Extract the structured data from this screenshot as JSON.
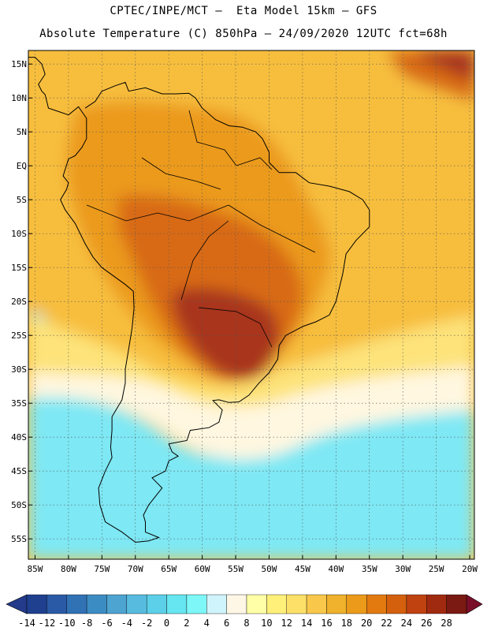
{
  "header": {
    "line1": "CPTEC/INPE/MCT –  Eta Model 15km – GFS",
    "line2": "Absolute Temperature (C) 850hPa – 24/09/2020 12UTC fct=68h"
  },
  "map": {
    "lon_range": [
      -86,
      -19.3
    ],
    "lat_range": [
      -58,
      17
    ],
    "y_ticks": [
      {
        "lat": 15,
        "label": "15N"
      },
      {
        "lat": 10,
        "label": "10N"
      },
      {
        "lat": 5,
        "label": "5N"
      },
      {
        "lat": 0,
        "label": "EQ"
      },
      {
        "lat": -5,
        "label": "5S"
      },
      {
        "lat": -10,
        "label": "10S"
      },
      {
        "lat": -15,
        "label": "15S"
      },
      {
        "lat": -20,
        "label": "20S"
      },
      {
        "lat": -25,
        "label": "25S"
      },
      {
        "lat": -30,
        "label": "30S"
      },
      {
        "lat": -35,
        "label": "35S"
      },
      {
        "lat": -40,
        "label": "40S"
      },
      {
        "lat": -45,
        "label": "45S"
      },
      {
        "lat": -50,
        "label": "50S"
      },
      {
        "lat": -55,
        "label": "55S"
      }
    ],
    "x_ticks": [
      {
        "lon": -85,
        "label": "85W"
      },
      {
        "lon": -80,
        "label": "80W"
      },
      {
        "lon": -75,
        "label": "75W"
      },
      {
        "lon": -70,
        "label": "70W"
      },
      {
        "lon": -65,
        "label": "65W"
      },
      {
        "lon": -60,
        "label": "60W"
      },
      {
        "lon": -55,
        "label": "55W"
      },
      {
        "lon": -50,
        "label": "50W"
      },
      {
        "lon": -45,
        "label": "45W"
      },
      {
        "lon": -40,
        "label": "40W"
      },
      {
        "lon": -35,
        "label": "35W"
      },
      {
        "lon": -30,
        "label": "30W"
      },
      {
        "lon": -25,
        "label": "25W"
      },
      {
        "lon": -20,
        "label": "20W"
      }
    ],
    "coastline": [
      [
        -77.5,
        8.5
      ],
      [
        -76,
        9.5
      ],
      [
        -75,
        11
      ],
      [
        -73,
        11.8
      ],
      [
        -71.5,
        12.3
      ],
      [
        -71,
        11
      ],
      [
        -68.5,
        11.5
      ],
      [
        -66,
        10.6
      ],
      [
        -64,
        10.6
      ],
      [
        -62,
        10.7
      ],
      [
        -61,
        10
      ],
      [
        -60,
        8.5
      ],
      [
        -58,
        6.8
      ],
      [
        -56,
        5.9
      ],
      [
        -54,
        5.7
      ],
      [
        -52,
        5
      ],
      [
        -51,
        4
      ],
      [
        -50,
        2
      ],
      [
        -50,
        0.5
      ],
      [
        -48.5,
        -1
      ],
      [
        -46,
        -1
      ],
      [
        -44,
        -2.5
      ],
      [
        -41,
        -3
      ],
      [
        -38,
        -3.8
      ],
      [
        -36,
        -5
      ],
      [
        -35,
        -6.5
      ],
      [
        -35,
        -9
      ],
      [
        -37,
        -11
      ],
      [
        -38.5,
        -13
      ],
      [
        -39,
        -16
      ],
      [
        -39.5,
        -18
      ],
      [
        -40,
        -20
      ],
      [
        -41,
        -22
      ],
      [
        -43,
        -23
      ],
      [
        -45,
        -23.7
      ],
      [
        -47.5,
        -25
      ],
      [
        -48.5,
        -26.5
      ],
      [
        -48.7,
        -28.5
      ],
      [
        -50,
        -30.5
      ],
      [
        -51.5,
        -32
      ],
      [
        -53,
        -33.8
      ],
      [
        -54.5,
        -34.8
      ],
      [
        -56,
        -34.9
      ],
      [
        -57.5,
        -34.5
      ],
      [
        -58.4,
        -34.6
      ],
      [
        -57,
        -36
      ],
      [
        -57.5,
        -37.8
      ],
      [
        -59,
        -38.6
      ],
      [
        -61.8,
        -39
      ],
      [
        -62.3,
        -40.5
      ],
      [
        -65,
        -41
      ],
      [
        -64.5,
        -42.2
      ],
      [
        -63.6,
        -42.8
      ],
      [
        -65,
        -43.5
      ],
      [
        -65.5,
        -45
      ],
      [
        -67.5,
        -46
      ],
      [
        -66,
        -47.5
      ],
      [
        -68,
        -50
      ],
      [
        -68.8,
        -51.5
      ],
      [
        -68.5,
        -52.5
      ],
      [
        -68.5,
        -54
      ],
      [
        -66.5,
        -54.8
      ],
      [
        -68,
        -55.3
      ],
      [
        -70,
        -55.5
      ],
      [
        -72,
        -54
      ],
      [
        -74.5,
        -52.5
      ],
      [
        -75.3,
        -50
      ],
      [
        -75.5,
        -47.5
      ],
      [
        -74.5,
        -45
      ],
      [
        -73.5,
        -43
      ],
      [
        -73.7,
        -41.5
      ],
      [
        -73.5,
        -39
      ],
      [
        -73.5,
        -37
      ],
      [
        -72,
        -34.5
      ],
      [
        -71.5,
        -32
      ],
      [
        -71.5,
        -30
      ],
      [
        -71,
        -27
      ],
      [
        -70.5,
        -24
      ],
      [
        -70.2,
        -21
      ],
      [
        -70.3,
        -18.5
      ],
      [
        -71.5,
        -17.5
      ],
      [
        -75,
        -15
      ],
      [
        -76.3,
        -13.5
      ],
      [
        -77.5,
        -11.5
      ],
      [
        -79,
        -8.5
      ],
      [
        -80.5,
        -6.5
      ],
      [
        -81.2,
        -5
      ],
      [
        -80.3,
        -3.5
      ],
      [
        -80,
        -2.5
      ],
      [
        -80.8,
        -1.5
      ],
      [
        -80,
        1
      ],
      [
        -79,
        1.5
      ],
      [
        -78,
        2.7
      ],
      [
        -77.3,
        4
      ],
      [
        -77.3,
        7
      ],
      [
        -78.5,
        8.7
      ],
      [
        -80,
        7.5
      ],
      [
        -81.5,
        8
      ],
      [
        -83,
        8.5
      ],
      [
        -83.5,
        10.5
      ],
      [
        -84,
        11
      ],
      [
        -84.5,
        12
      ],
      [
        -83.5,
        13.5
      ],
      [
        -84,
        15
      ],
      [
        -85,
        16
      ],
      [
        -86,
        16
      ]
    ],
    "colorbar": {
      "labels": [
        "-14",
        "-12",
        "-10",
        "-8",
        "-6",
        "-4",
        "-2",
        "0",
        "2",
        "4",
        "6",
        "8",
        "10",
        "12",
        "14",
        "16",
        "18",
        "20",
        "22",
        "24",
        "26",
        "28"
      ],
      "colors": [
        "#1f3f8f",
        "#2a5aa6",
        "#3172b5",
        "#3c8cc4",
        "#4ea4d1",
        "#56bbde",
        "#5cd0e8",
        "#66e6f0",
        "#7df7f7",
        "#d0f4fb",
        "#fff7e6",
        "#ffffa8",
        "#fff07a",
        "#fde068",
        "#f9c84a",
        "#f0b12c",
        "#eb9a1a",
        "#e27a10",
        "#d4600e",
        "#bf4210",
        "#a02a10",
        "#7a1a12"
      ],
      "left_color": "#233b8a",
      "right_color": "#7a0f2a"
    },
    "field_colors": {
      "hot_core": "#a8361a",
      "hot": "#d86a12",
      "warm": "#eb9a1a",
      "mild": "#f7be3e",
      "yellow": "#fde37a",
      "cream": "#fff7e0",
      "cold1": "#7ee8f4",
      "cold2": "#58c4e6",
      "cold3": "#3f94cc",
      "cold4": "#2f78b6"
    }
  }
}
